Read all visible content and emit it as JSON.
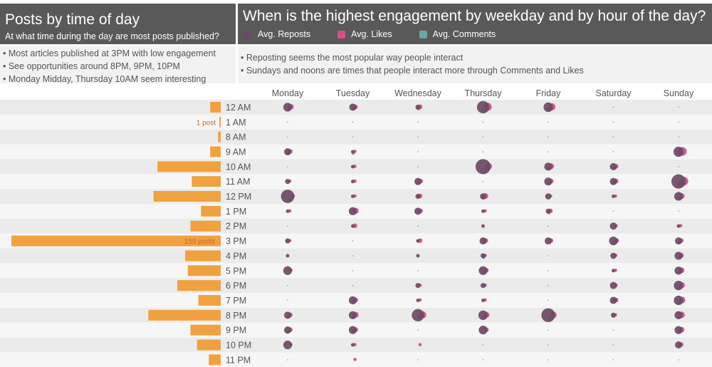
{
  "left_panel": {
    "title": "Posts by time of day",
    "subtitle": "At what time during the day are most posts published?",
    "notes": [
      "• Most articles published at 3PM with low engagement",
      "• See opportunities around 8PM, 9PM, 10PM",
      "• Monday Midday, Thursday 10AM seem interesting"
    ]
  },
  "right_panel": {
    "title": "When is the highest engagement by weekday and by hour of the day?",
    "notes": [
      "• Reposting seems the most popular way people interact",
      "• Sundays and noons are times that people interact more through Comments and Likes"
    ]
  },
  "legend": [
    {
      "label": "Avg. Reposts",
      "color": "#6b4a63"
    },
    {
      "label": "Avg. Likes",
      "color": "#d4508a"
    },
    {
      "label": "Avg. Comments",
      "color": "#6aa7a5"
    }
  ],
  "colors": {
    "bar": "#f0a140",
    "bar_label": "#c96a26",
    "row_band": "#ebebeb",
    "row_alt": "#f6f6f6",
    "reposts": "#6b4a63",
    "likes": "#d4508a",
    "comments": "#6aa7a5"
  },
  "chart_data": [
    {
      "type": "bar",
      "orientation": "horizontal",
      "title": "Posts by time of day",
      "categories": [
        "12 AM",
        "1 AM",
        "8 AM",
        "9 AM",
        "10 AM",
        "11 AM",
        "12 PM",
        "1 PM",
        "2 PM",
        "3 PM",
        "4 PM",
        "5 PM",
        "6 PM",
        "7 PM",
        "8 PM",
        "9 PM",
        "10 PM",
        "11 PM"
      ],
      "values": [
        8,
        1,
        2,
        8,
        48,
        22,
        51,
        15,
        23,
        159,
        27,
        25,
        33,
        17,
        55,
        23,
        18,
        9
      ],
      "data_labels": {
        "1": "1 post",
        "9": "159 posts"
      }
    },
    {
      "type": "scatter",
      "subtype": "bubble-matrix",
      "title": "When is the highest engagement by weekday and by hour of the day?",
      "columns": [
        "Monday",
        "Tuesday",
        "Wednesday",
        "Thursday",
        "Friday",
        "Saturday",
        "Sunday"
      ],
      "rows": [
        "12 AM",
        "1 AM",
        "8 AM",
        "9 AM",
        "10 AM",
        "11 AM",
        "12 PM",
        "1 PM",
        "2 PM",
        "3 PM",
        "4 PM",
        "5 PM",
        "6 PM",
        "7 PM",
        "8 PM",
        "9 PM",
        "10 PM",
        "11 PM"
      ],
      "series": [
        {
          "name": "Avg. Reposts",
          "values": [
            [
              6,
              0,
              0,
              4,
              0,
              2,
              14,
              1,
              0,
              2,
              1,
              6,
              0,
              0,
              4,
              4,
              6,
              0
            ],
            [
              4,
              0,
              0,
              1,
              1,
              1,
              1,
              5,
              1,
              0,
              0,
              0,
              0,
              5,
              5,
              5,
              1,
              0
            ],
            [
              2,
              0,
              0,
              0,
              0,
              4,
              2,
              4,
              0,
              1,
              1,
              0,
              2,
              1,
              12,
              0,
              0,
              0
            ],
            [
              12,
              0,
              0,
              0,
              18,
              0,
              3,
              1,
              1,
              4,
              2,
              6,
              2,
              1,
              7,
              6,
              0,
              0
            ],
            [
              7,
              0,
              0,
              0,
              5,
              5,
              3,
              2,
              0,
              4,
              0,
              0,
              0,
              0,
              15,
              0,
              0,
              0
            ],
            [
              0,
              0,
              0,
              0,
              4,
              4,
              1,
              0,
              4,
              6,
              3,
              1,
              4,
              4,
              2,
              0,
              0,
              0
            ],
            [
              0,
              0,
              0,
              8,
              0,
              16,
              6,
              0,
              1,
              4,
              5,
              5,
              7,
              7,
              5,
              5,
              4,
              0
            ]
          ]
        },
        {
          "name": "Avg. Likes",
          "values": [
            [
              3,
              0,
              0,
              2,
              0,
              1,
              2,
              1,
              0,
              1,
              0,
              1,
              0,
              0,
              2,
              2,
              1,
              0
            ],
            [
              2,
              0,
              0,
              1,
              1,
              1,
              1,
              3,
              2,
              0,
              0,
              0,
              0,
              2,
              3,
              2,
              1,
              1
            ],
            [
              2,
              0,
              0,
              0,
              0,
              2,
              2,
              2,
              0,
              2,
              0,
              0,
              1,
              1,
              5,
              0,
              1,
              0
            ],
            [
              6,
              0,
              0,
              0,
              4,
              0,
              3,
              1,
              0,
              2,
              1,
              2,
              1,
              1,
              3,
              2,
              0,
              0
            ],
            [
              5,
              0,
              0,
              0,
              3,
              2,
              1,
              2,
              0,
              2,
              0,
              0,
              0,
              0,
              4,
              0,
              0,
              0
            ],
            [
              0,
              0,
              0,
              0,
              2,
              2,
              1,
              0,
              1,
              2,
              1,
              1,
              1,
              2,
              1,
              0,
              0,
              0
            ],
            [
              0,
              0,
              0,
              7,
              0,
              7,
              3,
              0,
              1,
              2,
              2,
              3,
              3,
              4,
              4,
              3,
              2,
              0
            ]
          ]
        },
        {
          "name": "Avg. Comments",
          "values": [
            [
              1,
              0,
              0,
              1,
              0,
              0,
              1,
              0,
              0,
              0,
              0,
              0,
              0,
              0,
              1,
              1,
              0,
              0
            ],
            [
              1,
              0,
              0,
              1,
              0,
              0,
              0,
              0,
              0,
              0,
              0,
              0,
              0,
              1,
              1,
              1,
              0,
              0
            ],
            [
              1,
              0,
              0,
              0,
              0,
              1,
              0,
              0,
              0,
              0,
              0,
              0,
              0,
              0,
              1,
              0,
              0,
              0
            ],
            [
              3,
              0,
              0,
              0,
              1,
              0,
              1,
              0,
              0,
              0,
              1,
              1,
              0,
              0,
              1,
              0,
              0,
              0
            ],
            [
              2,
              0,
              0,
              0,
              1,
              1,
              0,
              1,
              0,
              0,
              0,
              0,
              0,
              0,
              1,
              0,
              0,
              0
            ],
            [
              0,
              0,
              0,
              0,
              1,
              1,
              0,
              0,
              0,
              1,
              0,
              0,
              0,
              1,
              0,
              0,
              0,
              0
            ],
            [
              0,
              0,
              0,
              1,
              0,
              3,
              1,
              0,
              0,
              1,
              1,
              1,
              1,
              2,
              1,
              1,
              1,
              0
            ]
          ]
        }
      ]
    }
  ]
}
